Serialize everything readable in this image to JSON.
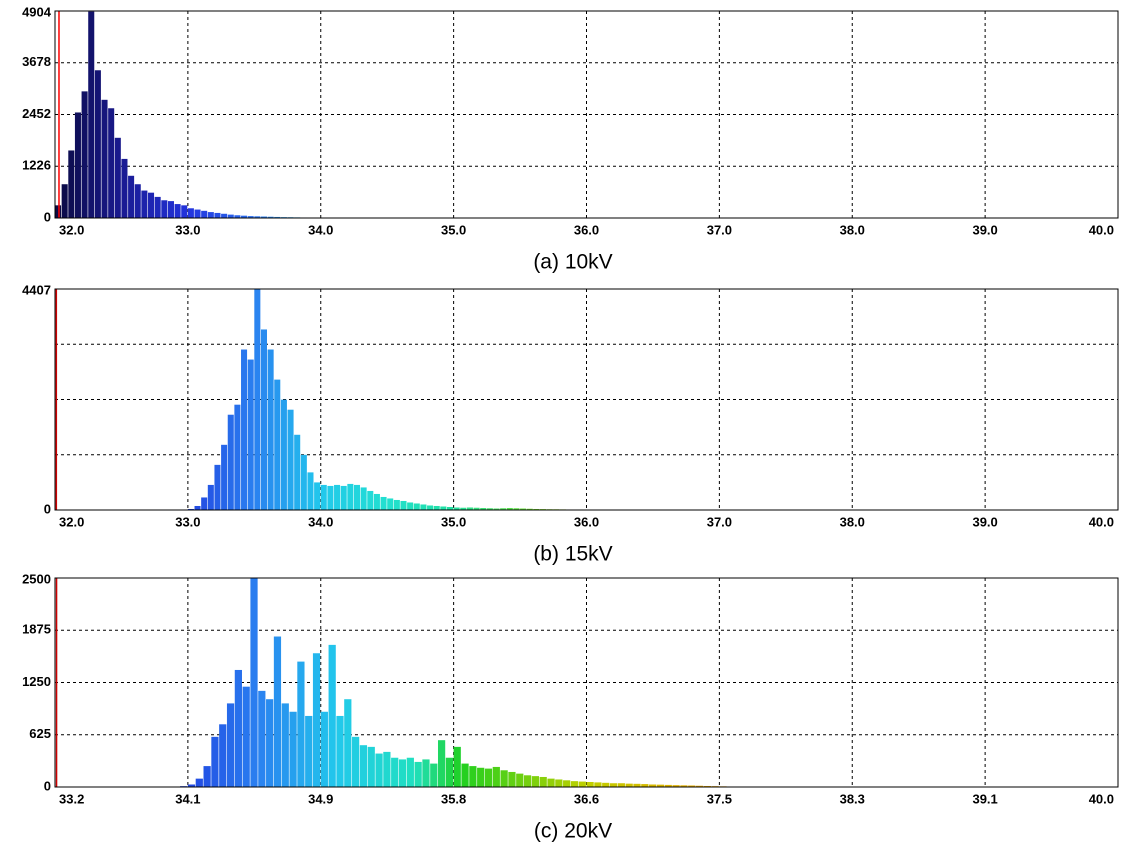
{
  "chart_data": [
    {
      "type": "histogram",
      "caption": "(a) 10kV",
      "bins": [
        32,
        32.05,
        32.1,
        32.15,
        32.2,
        32.25,
        32.3,
        32.35,
        32.4,
        32.45,
        32.5,
        32.55,
        32.6,
        32.65,
        32.7,
        32.75,
        32.8,
        32.85,
        32.9,
        32.95,
        33,
        33.05,
        33.1,
        33.15,
        33.2,
        33.25,
        33.3,
        33.35,
        33.4,
        33.45,
        33.5,
        33.55,
        33.6,
        33.65,
        33.7,
        33.75,
        33.8,
        33.85,
        33.9,
        33.95,
        34,
        34.05,
        34.1,
        34.15,
        34.2,
        34.25,
        34.3
      ],
      "values": [
        300,
        800,
        1600,
        2500,
        3000,
        4890,
        3500,
        2800,
        2600,
        1900,
        1400,
        1000,
        800,
        650,
        600,
        500,
        420,
        400,
        330,
        300,
        230,
        200,
        170,
        140,
        120,
        100,
        80,
        65,
        55,
        45,
        40,
        35,
        30,
        25,
        20,
        18,
        15,
        12,
        10,
        8,
        8,
        6,
        5,
        4,
        3,
        2
      ],
      "colormap": {
        "values": [
          32,
          32.5,
          33,
          33.5,
          34,
          34.3
        ],
        "colors": [
          "#0a0a40",
          "#1a1a90",
          "#2233dd",
          "#2a70ee",
          "#22c8ee",
          "#20e0e0"
        ]
      },
      "marker": 32.03,
      "marker_color": "#ff0000",
      "xlim": [
        32,
        40
      ],
      "xticks": [
        {
          "value": 32,
          "label": "32.0"
        },
        {
          "value": 33,
          "label": "33.0"
        },
        {
          "value": 34,
          "label": "34.0"
        },
        {
          "value": 35,
          "label": "35.0"
        },
        {
          "value": 36,
          "label": "36.0"
        },
        {
          "value": 37,
          "label": "37.0"
        },
        {
          "value": 38,
          "label": "38.0"
        },
        {
          "value": 39,
          "label": "39.0"
        },
        {
          "value": 40,
          "label": "40.0"
        }
      ],
      "ylim": [
        0,
        4904
      ],
      "yticks": [
        0,
        1226,
        2452,
        3678,
        4904
      ],
      "grid": true
    },
    {
      "type": "histogram",
      "caption": "(b) 15kV",
      "bins": [
        33,
        33.05,
        33.1,
        33.15,
        33.2,
        33.25,
        33.3,
        33.35,
        33.4,
        33.45,
        33.5,
        33.55,
        33.6,
        33.65,
        33.7,
        33.75,
        33.8,
        33.85,
        33.9,
        33.95,
        34,
        34.05,
        34.1,
        34.15,
        34.2,
        34.25,
        34.3,
        34.35,
        34.4,
        34.45,
        34.5,
        34.55,
        34.6,
        34.65,
        34.7,
        34.75,
        34.8,
        34.85,
        34.9,
        34.95,
        35,
        35.05,
        35.1,
        35.15,
        35.2,
        35.25,
        35.3,
        35.35,
        35.4,
        35.45,
        35.5,
        35.55,
        35.6,
        35.65,
        35.7,
        35.75,
        35.8,
        35.85,
        35.9,
        35.95,
        36,
        36.05,
        36.1
      ],
      "values": [
        20,
        80,
        250,
        500,
        900,
        1300,
        1900,
        2100,
        3200,
        3000,
        4400,
        3600,
        3200,
        2600,
        2200,
        2000,
        1500,
        1100,
        750,
        550,
        500,
        480,
        500,
        480,
        520,
        500,
        450,
        380,
        320,
        260,
        230,
        200,
        180,
        150,
        130,
        110,
        90,
        80,
        70,
        60,
        50,
        45,
        50,
        45,
        40,
        35,
        30,
        35,
        40,
        35,
        30,
        25,
        20,
        18,
        15,
        14,
        12,
        10,
        10,
        8,
        8,
        6
      ],
      "colormap": {
        "values": [
          33,
          33.5,
          34,
          34.5,
          35,
          35.5,
          36
        ],
        "colors": [
          "#2244e0",
          "#2a80f0",
          "#22c8ec",
          "#22e0d0",
          "#20e0a0",
          "#60e040",
          "#c0e000"
        ]
      },
      "marker": 32.01,
      "marker_color": "#cc0000",
      "xlim": [
        32,
        40
      ],
      "xticks": [
        {
          "value": 32,
          "label": "32.0"
        },
        {
          "value": 33,
          "label": "33.0"
        },
        {
          "value": 34,
          "label": "34.0"
        },
        {
          "value": 35,
          "label": "35.0"
        },
        {
          "value": 36,
          "label": "36.0"
        },
        {
          "value": 37,
          "label": "37.0"
        },
        {
          "value": 38,
          "label": "38.0"
        },
        {
          "value": 39,
          "label": "39.0"
        },
        {
          "value": 40,
          "label": "40.0"
        }
      ],
      "ylim": [
        0,
        4407
      ],
      "yticks": [
        0,
        4407
      ],
      "ygrid": [
        1101.75,
        2203.5,
        3305.25
      ],
      "grid": true
    },
    {
      "type": "histogram",
      "caption": "(c) 20kV",
      "bins": [
        34,
        34.05,
        34.1,
        34.15,
        34.2,
        34.25,
        34.3,
        34.35,
        34.4,
        34.45,
        34.5,
        34.55,
        34.6,
        34.65,
        34.7,
        34.75,
        34.8,
        34.85,
        34.9,
        34.95,
        35,
        35.05,
        35.1,
        35.15,
        35.2,
        35.25,
        35.3,
        35.35,
        35.4,
        35.45,
        35.5,
        35.55,
        35.6,
        35.65,
        35.7,
        35.75,
        35.8,
        35.85,
        35.9,
        35.95,
        36,
        36.05,
        36.1,
        36.15,
        36.2,
        36.25,
        36.3,
        36.35,
        36.4,
        36.45,
        36.5,
        36.55,
        36.6,
        36.65,
        36.7,
        36.75,
        36.8,
        36.85,
        36.9,
        36.95,
        37,
        37.05,
        37.1,
        37.15,
        37.2,
        37.25,
        37.3,
        37.35,
        37.4,
        37.45,
        37.5,
        37.55,
        37.6,
        37.65,
        37.7,
        37.75,
        37.8
      ],
      "values": [
        10,
        30,
        100,
        250,
        600,
        750,
        1000,
        1400,
        1200,
        2500,
        1150,
        1050,
        1800,
        1000,
        900,
        1500,
        850,
        1600,
        900,
        1700,
        850,
        1050,
        600,
        500,
        480,
        400,
        420,
        350,
        330,
        350,
        300,
        330,
        280,
        560,
        350,
        480,
        280,
        250,
        230,
        220,
        240,
        200,
        180,
        160,
        140,
        130,
        120,
        100,
        90,
        80,
        70,
        65,
        60,
        55,
        50,
        45,
        45,
        40,
        38,
        35,
        30,
        28,
        25,
        22,
        20,
        18,
        15,
        12,
        10,
        8,
        6,
        5,
        4,
        3,
        2,
        2
      ],
      "colormap": {
        "values": [
          34,
          34.5,
          35,
          35.5,
          35.8,
          36.6,
          37.5,
          38.3
        ],
        "colors": [
          "#2040e0",
          "#2a80f0",
          "#22c8ec",
          "#20e0c0",
          "#20d020",
          "#c0d000",
          "#f0a000",
          "#e00000"
        ]
      },
      "marker": 33.21,
      "marker_color": "#cc0000",
      "xlim": [
        33.2,
        40
      ],
      "xticks": [
        {
          "value": 33.2,
          "label": "33.2"
        },
        {
          "value": 34.05,
          "label": "34.1"
        },
        {
          "value": 34.9,
          "label": "34.9"
        },
        {
          "value": 35.75,
          "label": "35.8"
        },
        {
          "value": 36.6,
          "label": "36.6"
        },
        {
          "value": 37.45,
          "label": "37.5"
        },
        {
          "value": 38.3,
          "label": "38.3"
        },
        {
          "value": 39.15,
          "label": "39.1"
        },
        {
          "value": 40,
          "label": "40.0"
        }
      ],
      "ylim": [
        0,
        2500
      ],
      "yticks": [
        0,
        625,
        1250,
        1875,
        2500
      ],
      "grid": true
    }
  ]
}
